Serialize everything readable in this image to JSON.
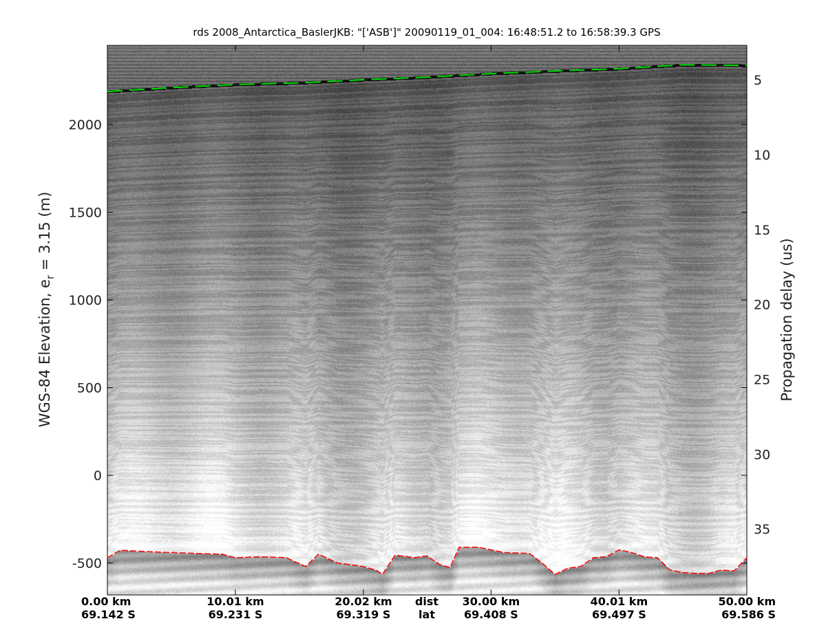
{
  "chart_data": {
    "type": "echogram",
    "title": "rds 2008_Antarctica_BaslerJKB: \"['ASB']\"  20090119_01_004: 16:48:51.2 to 16:58:39.3 GPS",
    "ylabel_left": "WGS-84 Elevation, e",
    "ylabel_left_sub": "r",
    "ylabel_left_suffix": " = 3.15 (m)",
    "ylabel_right": "Propagation delay (us)",
    "ylim_left": [
      -682,
      2451
    ],
    "ylim_right": [
      39.4,
      2.7
    ],
    "xlim_km": [
      0,
      50
    ],
    "left_ticks": [
      2000,
      1500,
      1000,
      500,
      0,
      -500
    ],
    "left_tick_labels": [
      "2000",
      "1500",
      "1000",
      "500",
      "0",
      "-500"
    ],
    "right_ticks": [
      5,
      10,
      15,
      20,
      25,
      30,
      35
    ],
    "right_tick_labels": [
      "5",
      "10",
      "15",
      "20",
      "25",
      "30",
      "35"
    ],
    "x_ticks_km": [
      0,
      10.01,
      20.02,
      30.0,
      40.01,
      50.0
    ],
    "x_tick_labels_dist": [
      "0.00 km",
      "10.01 km",
      "20.02 km",
      "30.00 km",
      "40.01 km",
      "50.00 km"
    ],
    "x_tick_labels_lat": [
      "69.142 S",
      "69.231 S",
      "69.319 S",
      "69.408 S",
      "69.497 S",
      "69.586 S"
    ],
    "x_row_label_dist": "dist",
    "x_row_label_lat": "lat",
    "surface_color": "#00e000",
    "bed_color": "#ff0000",
    "surface": {
      "km": [
        0,
        5,
        10,
        15,
        20,
        25,
        30,
        35,
        40,
        45,
        50
      ],
      "elev": [
        2188,
        2210,
        2228,
        2237,
        2255,
        2270,
        2290,
        2305,
        2318,
        2340,
        2337
      ]
    },
    "bed": {
      "km": [
        0,
        1,
        3,
        5,
        7,
        9,
        10,
        12,
        14,
        15.5,
        16.5,
        18,
        20,
        21,
        21.5,
        22.5,
        24,
        25,
        26,
        26.8,
        27.5,
        29,
        31,
        33,
        34,
        35,
        36,
        37,
        38,
        39,
        40,
        41,
        42,
        43,
        44,
        45,
        46,
        47,
        48,
        49,
        50
      ],
      "elev": [
        -470,
        -427,
        -435,
        -440,
        -445,
        -450,
        -470,
        -465,
        -470,
        -520,
        -450,
        -500,
        -520,
        -540,
        -565,
        -455,
        -470,
        -460,
        -510,
        -525,
        -410,
        -410,
        -440,
        -445,
        -500,
        -565,
        -530,
        -520,
        -470,
        -465,
        -425,
        -440,
        -465,
        -470,
        -540,
        -555,
        -560,
        -560,
        -540,
        -545,
        -470
      ]
    }
  }
}
